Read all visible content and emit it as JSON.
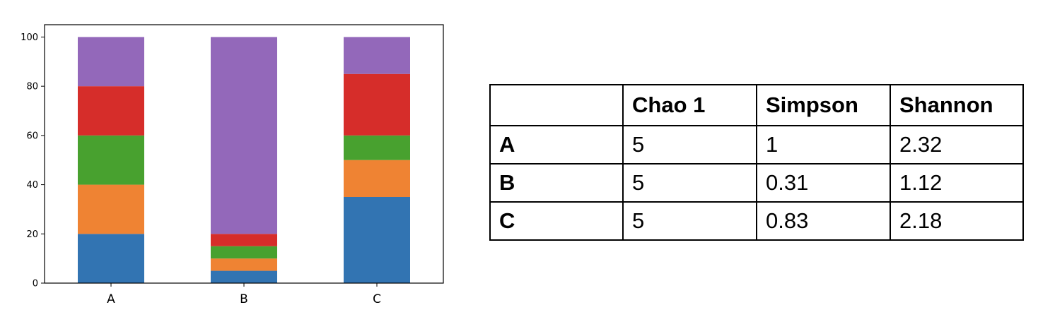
{
  "chart_data": {
    "type": "bar",
    "stacked": true,
    "categories": [
      "A",
      "B",
      "C"
    ],
    "series": [
      {
        "color": "#3274b2",
        "values": [
          20,
          5,
          35
        ]
      },
      {
        "color": "#ef8333",
        "values": [
          20,
          5,
          15
        ]
      },
      {
        "color": "#48a12f",
        "values": [
          20,
          5,
          10
        ]
      },
      {
        "color": "#d62d2a",
        "values": [
          20,
          5,
          25
        ]
      },
      {
        "color": "#9368ba",
        "values": [
          20,
          80,
          15
        ]
      }
    ],
    "ylim": [
      0,
      105
    ],
    "yticks": [
      0,
      20,
      40,
      60,
      80,
      100
    ],
    "grid": false
  },
  "table": {
    "headers": [
      "",
      "Chao 1",
      "Simpson",
      "Shannon"
    ],
    "rows": [
      [
        "A",
        "5",
        "1",
        "2.32"
      ],
      [
        "B",
        "5",
        "0.31",
        "1.12"
      ],
      [
        "C",
        "5",
        "0.83",
        "2.18"
      ]
    ]
  }
}
